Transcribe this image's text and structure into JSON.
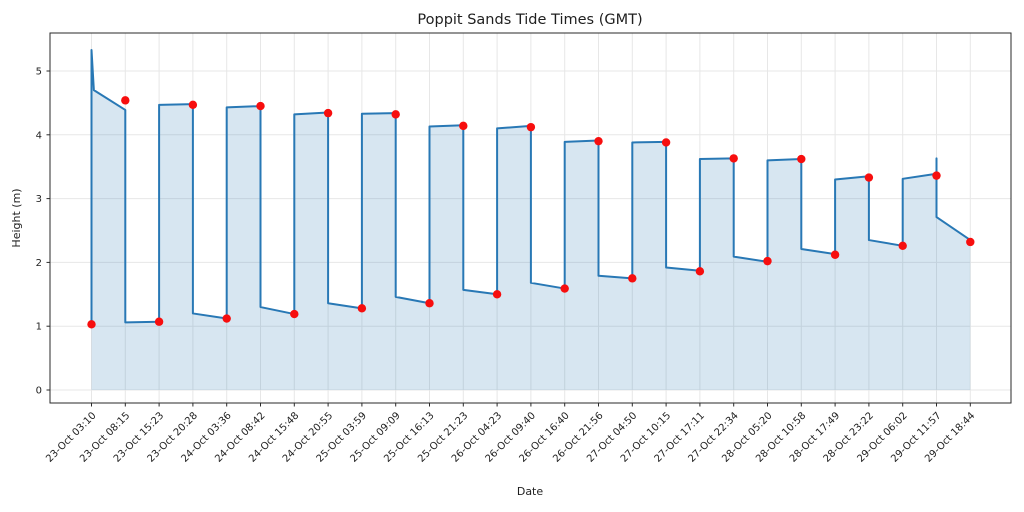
{
  "chart_data": {
    "type": "line",
    "title": "Poppit Sands Tide Times (GMT)",
    "xlabel": "Date",
    "ylabel": "Height (m)",
    "grid": true,
    "legend": "none",
    "categories": [
      "23-Oct 03:10",
      "23-Oct 08:15",
      "23-Oct 15:23",
      "23-Oct 20:28",
      "24-Oct 03:36",
      "24-Oct 08:42",
      "24-Oct 15:48",
      "24-Oct 20:55",
      "25-Oct 03:59",
      "25-Oct 09:09",
      "25-Oct 16:13",
      "25-Oct 21:23",
      "26-Oct 04:23",
      "26-Oct 09:40",
      "26-Oct 16:40",
      "26-Oct 21:56",
      "27-Oct 04:50",
      "27-Oct 10:15",
      "27-Oct 17:11",
      "27-Oct 22:34",
      "28-Oct 05:20",
      "28-Oct 10:58",
      "28-Oct 17:49",
      "28-Oct 23:22",
      "29-Oct 06:02",
      "29-Oct 11:57",
      "29-Oct 18:44"
    ],
    "marker_heights": [
      1.03,
      4.54,
      1.07,
      4.47,
      1.12,
      4.45,
      1.19,
      4.34,
      1.28,
      4.32,
      1.36,
      4.14,
      1.5,
      4.12,
      1.59,
      3.9,
      1.75,
      3.88,
      1.86,
      3.63,
      2.02,
      3.62,
      2.12,
      3.33,
      2.26,
      3.36,
      2.32
    ],
    "marker_types": [
      "low",
      "high",
      "low",
      "high",
      "low",
      "high",
      "low",
      "high",
      "low",
      "high",
      "low",
      "high",
      "low",
      "high",
      "low",
      "high",
      "low",
      "high",
      "low",
      "high",
      "low",
      "high",
      "low",
      "high",
      "low",
      "high",
      "low"
    ],
    "curve_points": [
      [
        1,
        1.03
      ],
      [
        1,
        5.33
      ],
      [
        1.07,
        4.7
      ],
      [
        2,
        4.39
      ],
      [
        2,
        1.06
      ],
      [
        3,
        1.07
      ],
      [
        3,
        4.47
      ],
      [
        4,
        4.48
      ],
      [
        4,
        1.2
      ],
      [
        5,
        1.12
      ],
      [
        5,
        4.43
      ],
      [
        6,
        4.45
      ],
      [
        6,
        1.3
      ],
      [
        7,
        1.19
      ],
      [
        7,
        4.32
      ],
      [
        8,
        4.35
      ],
      [
        8,
        1.36
      ],
      [
        9,
        1.28
      ],
      [
        9,
        4.33
      ],
      [
        10,
        4.34
      ],
      [
        10,
        1.46
      ],
      [
        11,
        1.36
      ],
      [
        11,
        4.13
      ],
      [
        12,
        4.15
      ],
      [
        12,
        1.57
      ],
      [
        13,
        1.5
      ],
      [
        13,
        4.1
      ],
      [
        14,
        4.14
      ],
      [
        14,
        1.68
      ],
      [
        15,
        1.59
      ],
      [
        15,
        3.89
      ],
      [
        16,
        3.91
      ],
      [
        16,
        1.79
      ],
      [
        17,
        1.75
      ],
      [
        17,
        3.88
      ],
      [
        18,
        3.89
      ],
      [
        18,
        1.92
      ],
      [
        19,
        1.87
      ],
      [
        19,
        3.62
      ],
      [
        20,
        3.63
      ],
      [
        20,
        2.09
      ],
      [
        21,
        2.01
      ],
      [
        21,
        3.6
      ],
      [
        22,
        3.62
      ],
      [
        22,
        2.21
      ],
      [
        23,
        2.13
      ],
      [
        23,
        3.3
      ],
      [
        24,
        3.35
      ],
      [
        24,
        2.35
      ],
      [
        25,
        2.26
      ],
      [
        25,
        3.31
      ],
      [
        26,
        3.39
      ],
      [
        26,
        3.63
      ],
      [
        26,
        2.71
      ],
      [
        27,
        2.35
      ]
    ],
    "yticks": [
      0,
      1,
      2,
      3,
      4,
      5
    ],
    "ylim": [
      -0.2,
      5.6
    ],
    "colors": {
      "line": "#2878b5",
      "fill": "#1f77b4",
      "fill_opacity": 0.18,
      "marker": "#f70e0e",
      "grid": "#e7e7e7",
      "axis": "#2a2a2a",
      "text": "#1f1f1f",
      "background": "#ffffff"
    }
  }
}
